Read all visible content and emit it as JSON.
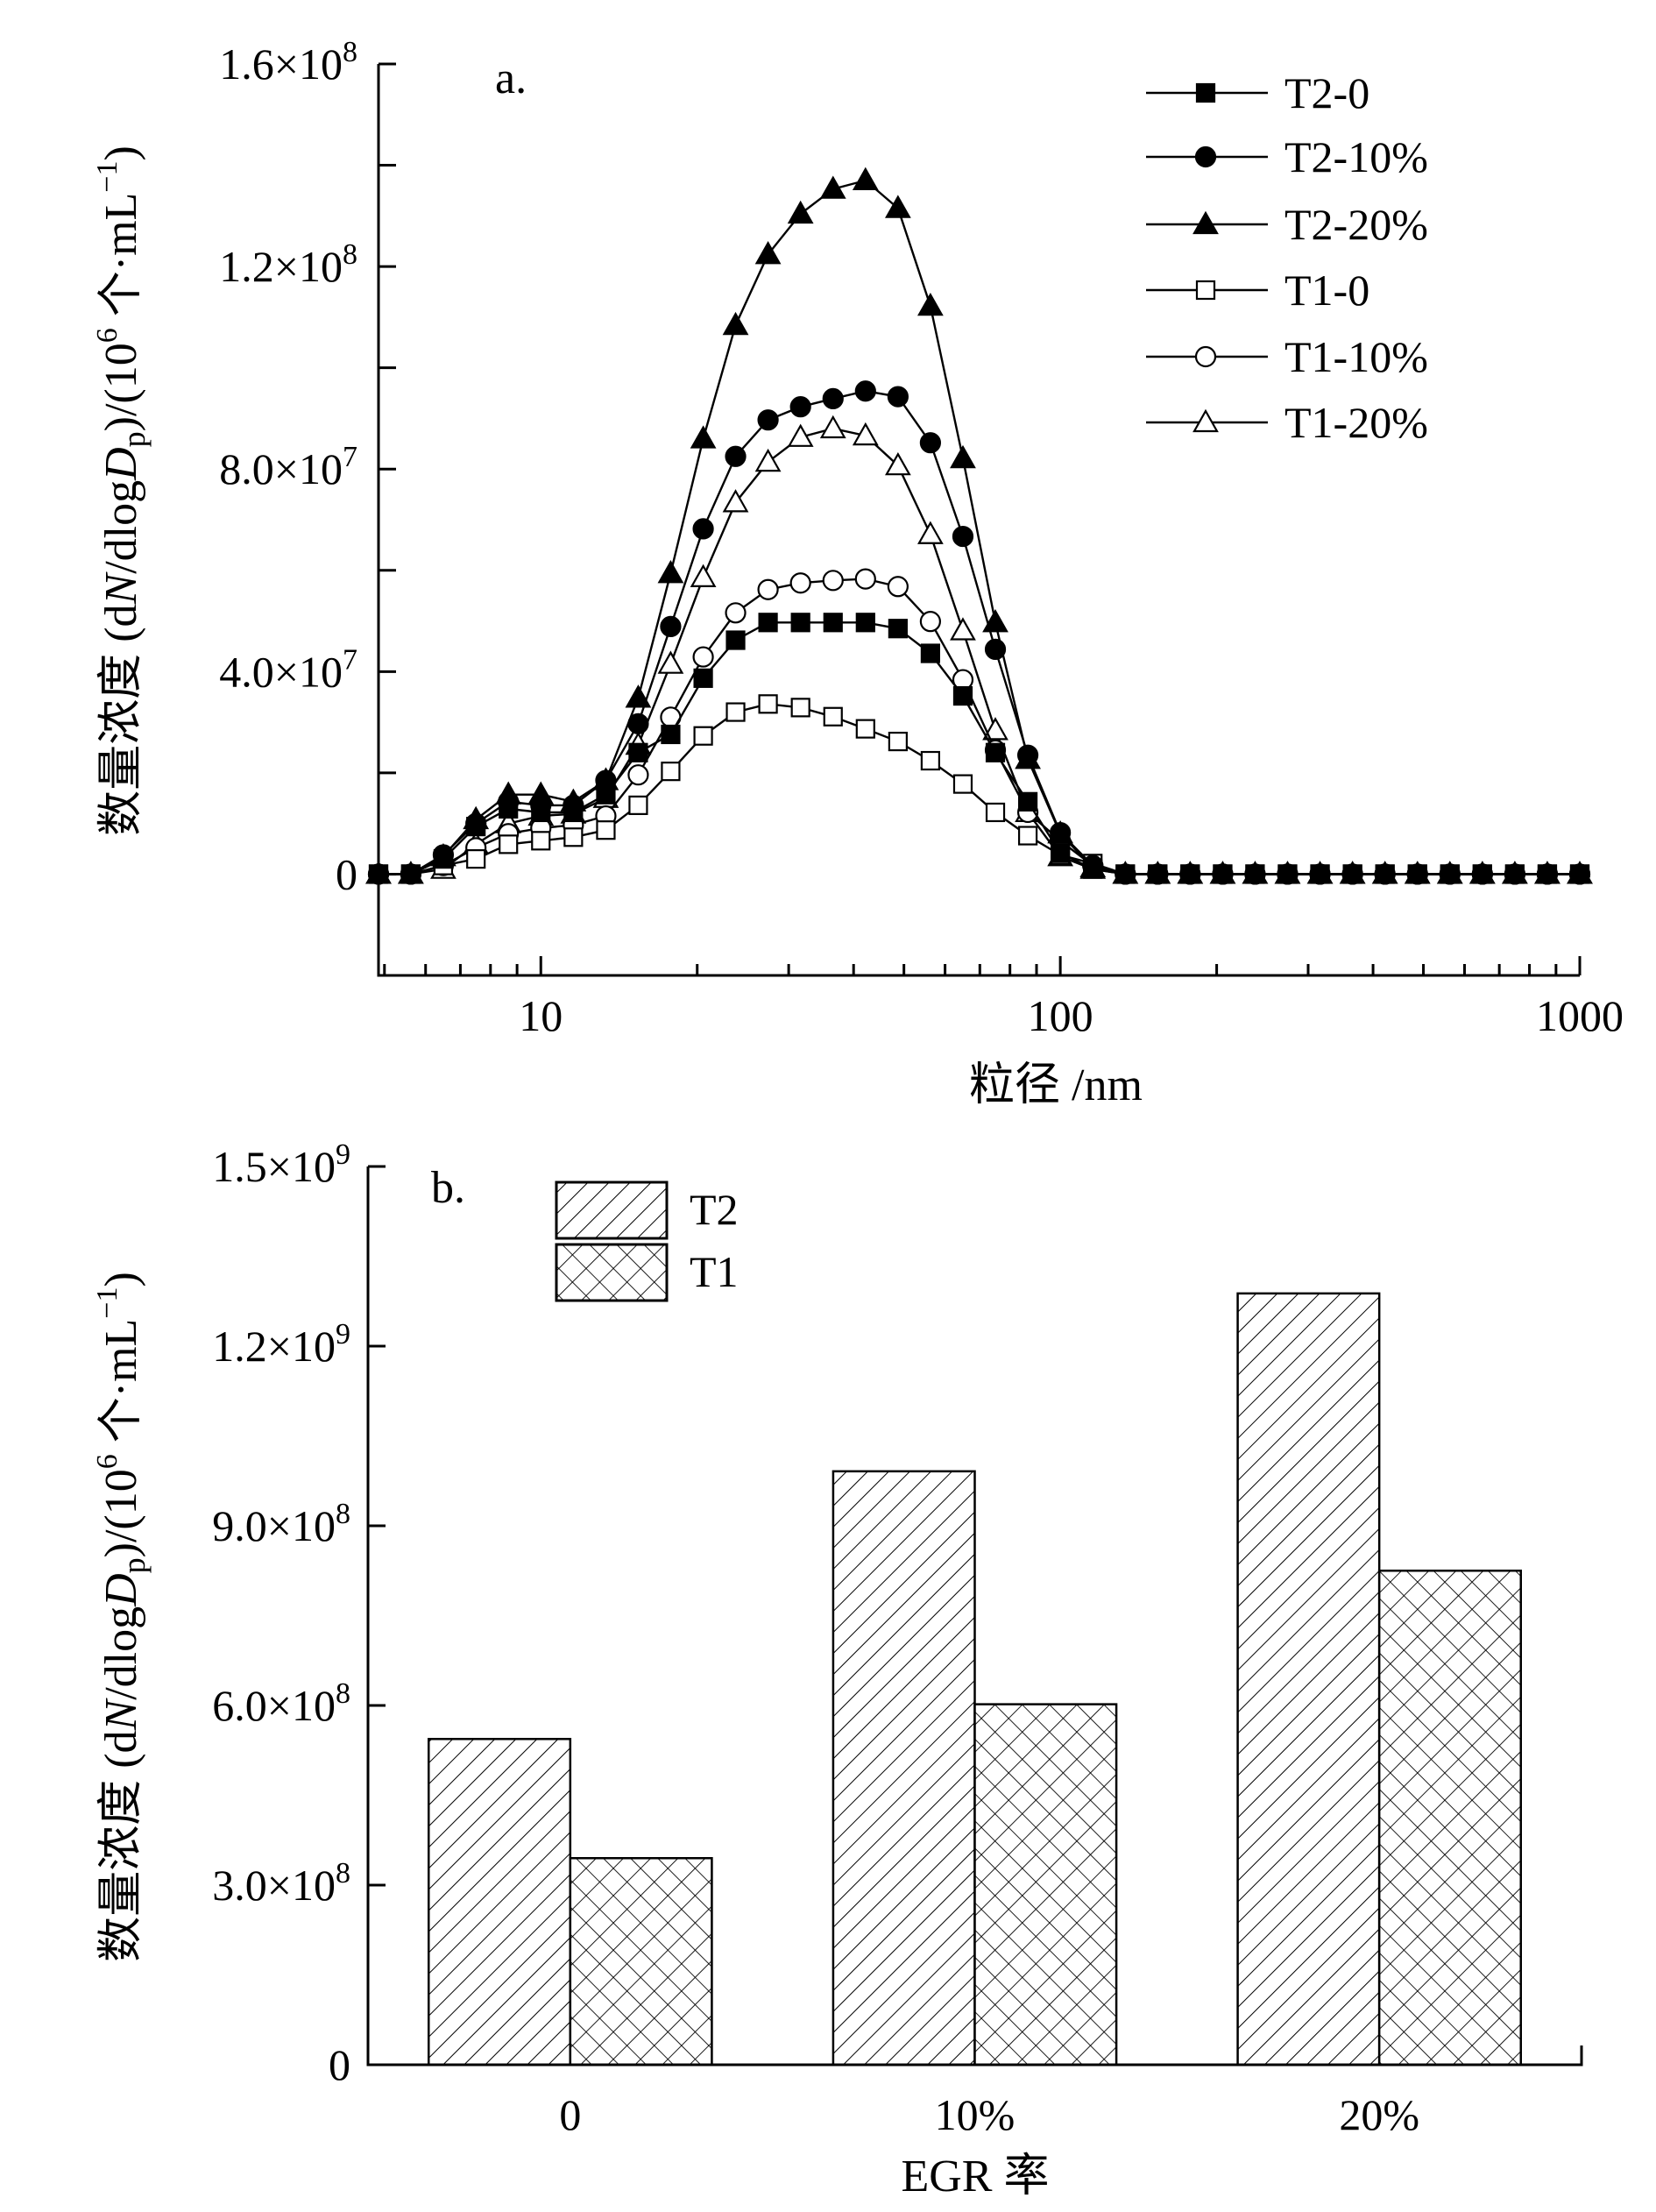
{
  "chart_data": [
    {
      "type": "line",
      "panel_label": "a.",
      "xlabel": "粒径 /nm",
      "xscale": "log",
      "xlim": [
        4.87,
        1000
      ],
      "x_ticks": [
        "10",
        "100",
        "1000"
      ],
      "x_tick_values": [
        10,
        100,
        1000
      ],
      "ylim": [
        -20000000,
        160000000
      ],
      "y_ticks": [
        {
          "base": "1.6×10",
          "exp": "8",
          "value": 160000000
        },
        {
          "base": "1.2×10",
          "exp": "8",
          "value": 120000000
        },
        {
          "base": "8.0×10",
          "exp": "7",
          "value": 80000000
        },
        {
          "base": "4.0×10",
          "exp": "7",
          "value": 40000000
        },
        {
          "base": "0",
          "exp": "",
          "value": 0
        }
      ],
      "ylabel_parts": [
        {
          "t": "数量浓度 (d",
          "s": ""
        },
        {
          "t": "N",
          "s": "i"
        },
        {
          "t": "/dlog",
          "s": ""
        },
        {
          "t": "D",
          "s": "i"
        },
        {
          "t": "p",
          "s": "sub"
        },
        {
          "t": ")/(10",
          "s": ""
        },
        {
          "t": "6",
          "s": "sup"
        },
        {
          "t": " 个·mL",
          "s": ""
        },
        {
          "t": "−1",
          "s": "sup"
        },
        {
          "t": ")",
          "s": ""
        }
      ],
      "legend_position": "top-right",
      "y_unit_multiplier": 1000000,
      "x": [
        4.87,
        5.62,
        6.49,
        7.5,
        8.66,
        10,
        11.55,
        13.34,
        15.4,
        17.78,
        20.54,
        23.71,
        27.38,
        31.62,
        36.52,
        42.17,
        48.7,
        56.23,
        64.94,
        74.99,
        86.6,
        100,
        115.5,
        133.4,
        154.0,
        177.8,
        205.4,
        237.1,
        273.8,
        316.2,
        365.2,
        421.7,
        487.0,
        562.3,
        649.4,
        749.9,
        866.0,
        1000
      ],
      "series": [
        {
          "name": "T2-0",
          "marker": "square",
          "filled": true,
          "values": [
            0,
            0,
            3,
            9.4,
            12.9,
            12.2,
            12.2,
            15.7,
            24,
            27.6,
            38.7,
            46.2,
            49.7,
            49.7,
            49.7,
            49.7,
            48.5,
            43.6,
            35.2,
            24,
            14.3,
            4.2,
            1,
            0,
            0,
            0,
            0,
            0,
            0,
            0,
            0,
            0,
            0,
            0,
            0,
            0,
            0,
            0
          ]
        },
        {
          "name": "T2-10%",
          "marker": "circle",
          "filled": true,
          "values": [
            0,
            0,
            3.8,
            10,
            14.3,
            13.6,
            13.6,
            18.5,
            29.7,
            48.9,
            68.2,
            82.5,
            89.7,
            92.3,
            93.9,
            95.4,
            94.3,
            85.2,
            66.7,
            44.4,
            23.5,
            8.2,
            1.7,
            0,
            0,
            0,
            0,
            0,
            0,
            0,
            0,
            0,
            0,
            0,
            0,
            0,
            0,
            0
          ]
        },
        {
          "name": "T2-20%",
          "marker": "triangle",
          "filled": true,
          "values": [
            0,
            0,
            3.5,
            10.8,
            15.7,
            15.7,
            14.3,
            18.5,
            34.8,
            59.4,
            86,
            108.4,
            122.4,
            130.4,
            135.3,
            137,
            131.5,
            112.2,
            82.1,
            49.7,
            22.7,
            8,
            1.3,
            0,
            0,
            0,
            0,
            0,
            0,
            0,
            0,
            0,
            0,
            0,
            0,
            0,
            0,
            0
          ]
        },
        {
          "name": "T1-0",
          "marker": "square",
          "filled": false,
          "values": [
            0,
            0,
            1.7,
            3,
            5.9,
            6.6,
            7.3,
            8.7,
            13.6,
            20.3,
            27.3,
            32,
            33.6,
            32.9,
            31.1,
            28.7,
            26.2,
            22.4,
            17.8,
            12.2,
            7.6,
            3.8,
            2.1,
            0,
            0,
            0,
            0,
            0,
            0,
            0,
            0,
            0,
            0,
            0,
            0,
            0,
            0,
            0
          ]
        },
        {
          "name": "T1-10%",
          "marker": "circle",
          "filled": false,
          "values": [
            0,
            0,
            1.7,
            5.2,
            8,
            9.1,
            9.7,
            11.5,
            19.6,
            31,
            42.9,
            51.6,
            56.2,
            57.5,
            58,
            58.3,
            56.8,
            49.9,
            38.4,
            24.5,
            12.2,
            6.6,
            1.7,
            0,
            0,
            0,
            0,
            0,
            0,
            0,
            0,
            0,
            0,
            0,
            0,
            0,
            0,
            0
          ]
        },
        {
          "name": "T1-20%",
          "marker": "triangle",
          "filled": false,
          "values": [
            0,
            0,
            1,
            5.9,
            10,
            11.5,
            11.9,
            15,
            25.5,
            41.5,
            58.6,
            73.4,
            81.4,
            86.3,
            88,
            86.6,
            80.7,
            67.1,
            48.1,
            28.4,
            12.2,
            3.5,
            1,
            0,
            0,
            0,
            0,
            0,
            0,
            0,
            0,
            0,
            0,
            0,
            0,
            0,
            0,
            0
          ]
        }
      ]
    },
    {
      "type": "bar",
      "panel_label": "b.",
      "xlabel": "EGR 率",
      "categories": [
        "0",
        "10%",
        "20%"
      ],
      "ylim": [
        0,
        1500000000
      ],
      "y_ticks": [
        {
          "base": "1.5×10",
          "exp": "9",
          "value": 1500000000
        },
        {
          "base": "1.2×10",
          "exp": "9",
          "value": 1200000000
        },
        {
          "base": "9.0×10",
          "exp": "8",
          "value": 900000000
        },
        {
          "base": "6.0×10",
          "exp": "8",
          "value": 600000000
        },
        {
          "base": "3.0×10",
          "exp": "8",
          "value": 300000000
        },
        {
          "base": "0",
          "exp": "",
          "value": 0
        }
      ],
      "ylabel_parts": [
        {
          "t": "数量浓度 (d",
          "s": ""
        },
        {
          "t": "N",
          "s": "i"
        },
        {
          "t": "/dlog",
          "s": ""
        },
        {
          "t": "D",
          "s": "i"
        },
        {
          "t": "p",
          "s": "sub"
        },
        {
          "t": ")/(10",
          "s": ""
        },
        {
          "t": "6",
          "s": "sup"
        },
        {
          "t": " 个·mL",
          "s": ""
        },
        {
          "t": "−1",
          "s": "sup"
        },
        {
          "t": ")",
          "s": ""
        }
      ],
      "legend_position": "top-left",
      "series": [
        {
          "name": "T2",
          "pattern": "diagonal-hatch",
          "values": [
            544000000,
            991000000,
            1288000000
          ]
        },
        {
          "name": "T1",
          "pattern": "cross-hatch",
          "values": [
            345000000,
            602000000,
            825000000
          ]
        }
      ]
    }
  ]
}
